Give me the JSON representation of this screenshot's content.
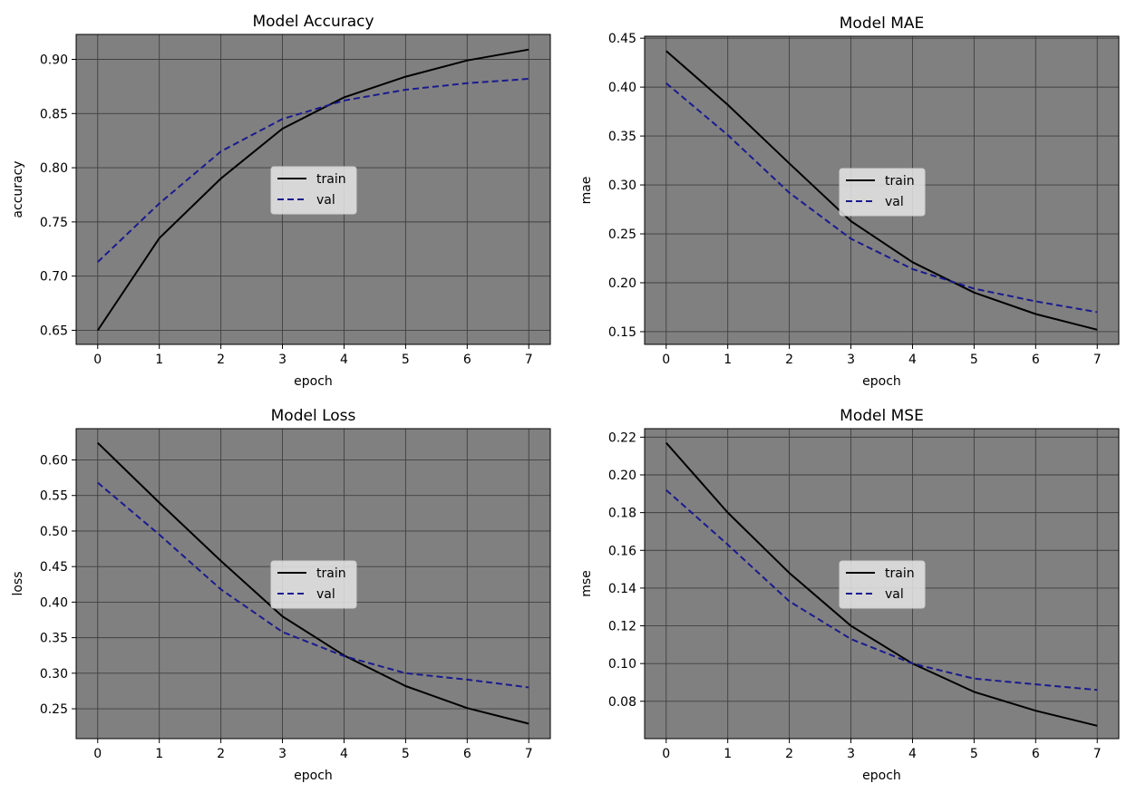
{
  "colors": {
    "panel_bg": "#808080",
    "grid": "#404040",
    "train": "#000000",
    "val": "#1a1a8f",
    "legend_bg": "#e6e6e6",
    "axis_text": "#000000"
  },
  "chart_data": [
    {
      "type": "line",
      "title": "Model Accuracy",
      "xlabel": "epoch",
      "ylabel": "accuracy",
      "legend_position": "center",
      "x": [
        0,
        1,
        2,
        3,
        4,
        5,
        6,
        7
      ],
      "xlim": [
        -0.35,
        7.35
      ],
      "ylim": [
        0.637,
        0.923
      ],
      "xticks": [
        "0",
        "1",
        "2",
        "3",
        "4",
        "5",
        "6",
        "7"
      ],
      "yticks": [
        "0.65",
        "0.70",
        "0.75",
        "0.80",
        "0.85",
        "0.90"
      ],
      "series": [
        {
          "name": "train",
          "style": "solid",
          "values": [
            0.65,
            0.735,
            0.79,
            0.836,
            0.865,
            0.884,
            0.899,
            0.909
          ]
        },
        {
          "name": "val",
          "style": "dashed",
          "values": [
            0.713,
            0.767,
            0.815,
            0.845,
            0.862,
            0.872,
            0.878,
            0.882
          ]
        }
      ]
    },
    {
      "type": "line",
      "title": "Model MAE",
      "xlabel": "epoch",
      "ylabel": "mae",
      "legend_position": "center",
      "x": [
        0,
        1,
        2,
        3,
        4,
        5,
        6,
        7
      ],
      "xlim": [
        -0.35,
        7.35
      ],
      "ylim": [
        0.137,
        0.452
      ],
      "xticks": [
        "0",
        "1",
        "2",
        "3",
        "4",
        "5",
        "6",
        "7"
      ],
      "yticks": [
        "0.15",
        "0.20",
        "0.25",
        "0.30",
        "0.35",
        "0.40",
        "0.45"
      ],
      "series": [
        {
          "name": "train",
          "style": "solid",
          "values": [
            0.437,
            0.382,
            0.322,
            0.263,
            0.221,
            0.19,
            0.168,
            0.152
          ]
        },
        {
          "name": "val",
          "style": "dashed",
          "values": [
            0.404,
            0.351,
            0.292,
            0.245,
            0.214,
            0.194,
            0.181,
            0.17
          ]
        }
      ]
    },
    {
      "type": "line",
      "title": "Model Loss",
      "xlabel": "epoch",
      "ylabel": "loss",
      "legend_position": "center",
      "x": [
        0,
        1,
        2,
        3,
        4,
        5,
        6,
        7
      ],
      "xlim": [
        -0.35,
        7.35
      ],
      "ylim": [
        0.208,
        0.644
      ],
      "xticks": [
        "0",
        "1",
        "2",
        "3",
        "4",
        "5",
        "6",
        "7"
      ],
      "yticks": [
        "0.25",
        "0.30",
        "0.35",
        "0.40",
        "0.45",
        "0.50",
        "0.55",
        "0.60"
      ],
      "series": [
        {
          "name": "train",
          "style": "solid",
          "values": [
            0.624,
            0.54,
            0.458,
            0.38,
            0.325,
            0.282,
            0.251,
            0.229
          ]
        },
        {
          "name": "val",
          "style": "dashed",
          "values": [
            0.568,
            0.495,
            0.418,
            0.358,
            0.324,
            0.3,
            0.291,
            0.28
          ]
        }
      ]
    },
    {
      "type": "line",
      "title": "Model MSE",
      "xlabel": "epoch",
      "ylabel": "mse",
      "legend_position": "center",
      "x": [
        0,
        1,
        2,
        3,
        4,
        5,
        6,
        7
      ],
      "xlim": [
        -0.35,
        7.35
      ],
      "ylim": [
        0.0602,
        0.2245
      ],
      "xticks": [
        "0",
        "1",
        "2",
        "3",
        "4",
        "5",
        "6",
        "7"
      ],
      "yticks": [
        "0.08",
        "0.10",
        "0.12",
        "0.14",
        "0.16",
        "0.18",
        "0.20",
        "0.22"
      ],
      "series": [
        {
          "name": "train",
          "style": "solid",
          "values": [
            0.217,
            0.18,
            0.148,
            0.12,
            0.1,
            0.085,
            0.075,
            0.067
          ]
        },
        {
          "name": "val",
          "style": "dashed",
          "values": [
            0.192,
            0.163,
            0.133,
            0.113,
            0.1,
            0.092,
            0.089,
            0.086
          ]
        }
      ]
    }
  ]
}
